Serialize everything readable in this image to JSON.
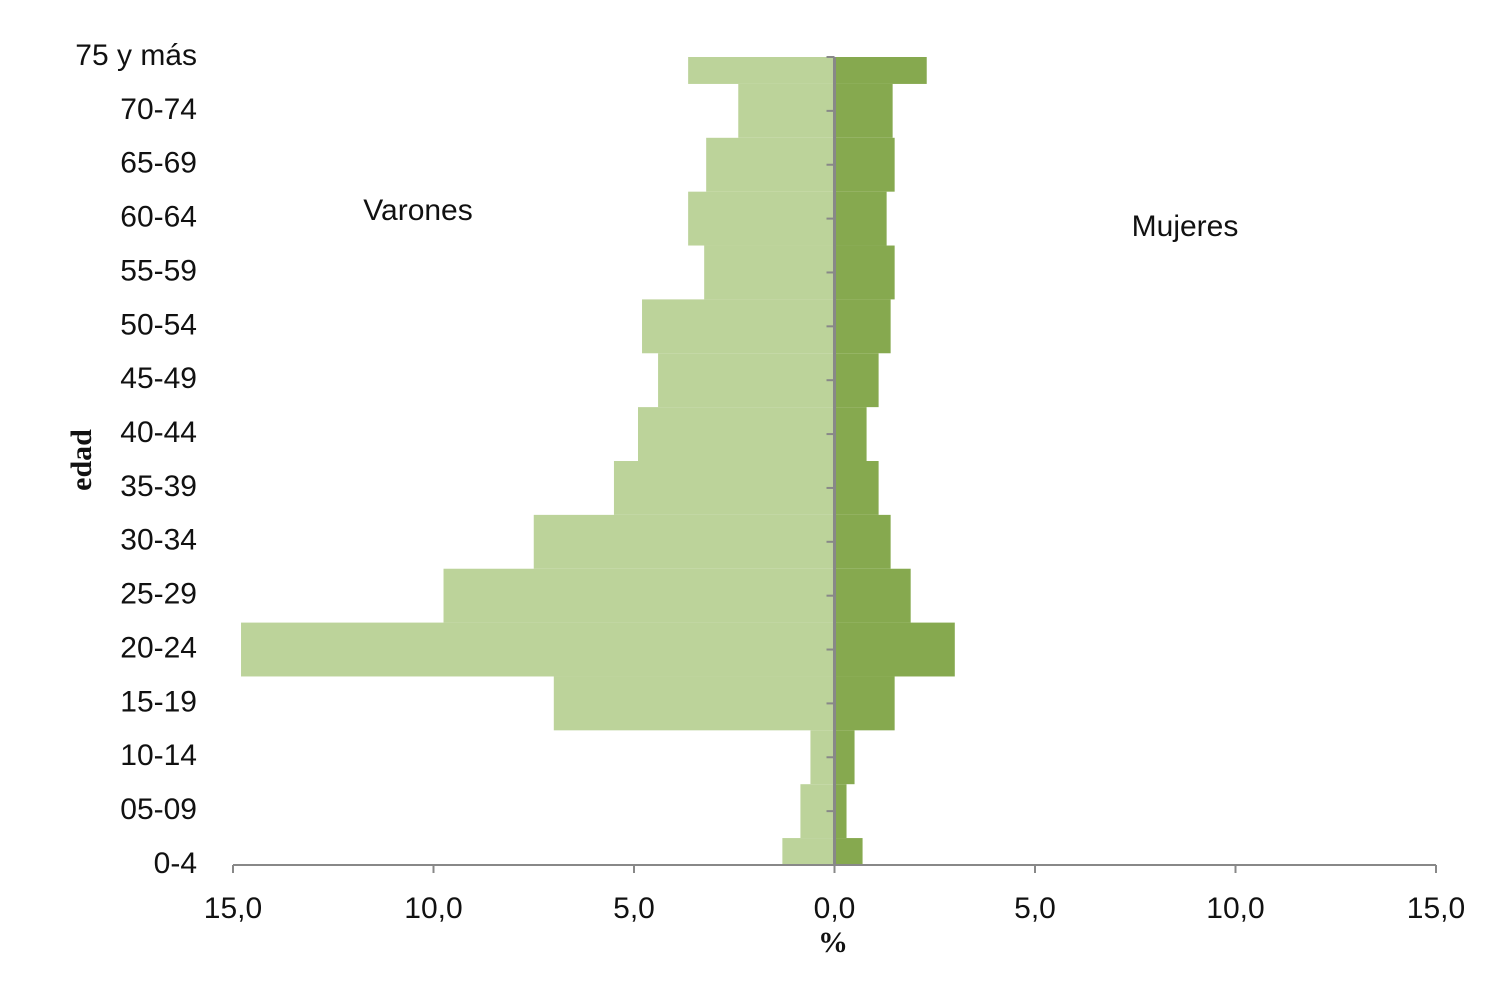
{
  "chart_data": {
    "type": "pyramid",
    "categories": [
      "0-4",
      "05-09",
      "10-14",
      "15-19",
      "20-24",
      "25-29",
      "30-34",
      "35-39",
      "40-44",
      "45-49",
      "50-54",
      "55-59",
      "60-64",
      "65-69",
      "70-74",
      "75 y más"
    ],
    "series": [
      {
        "name": "Varones",
        "color": "#bcd39a",
        "values": [
          -1.3,
          -0.85,
          -0.6,
          -7.0,
          -14.8,
          -9.75,
          -7.5,
          -5.5,
          -4.9,
          -4.4,
          -4.8,
          -3.25,
          -3.65,
          -3.2,
          -2.4,
          -3.65
        ]
      },
      {
        "name": "Mujeres",
        "color": "#86a94f",
        "values": [
          0.7,
          0.3,
          0.5,
          1.5,
          3.0,
          1.9,
          1.4,
          1.1,
          0.8,
          1.1,
          1.4,
          1.5,
          1.3,
          1.5,
          1.45,
          2.3
        ]
      }
    ],
    "xlim": [
      -15,
      15
    ],
    "xticks": [
      {
        "value": -15,
        "label": "15,0"
      },
      {
        "value": -10,
        "label": "10,0"
      },
      {
        "value": -5,
        "label": "5,0"
      },
      {
        "value": 0,
        "label": "0,0"
      },
      {
        "value": 5,
        "label": "5,0"
      },
      {
        "value": 10,
        "label": "10,0"
      },
      {
        "value": 15,
        "label": "15,0"
      }
    ],
    "xlabel": "%",
    "ylabel": "edad"
  }
}
